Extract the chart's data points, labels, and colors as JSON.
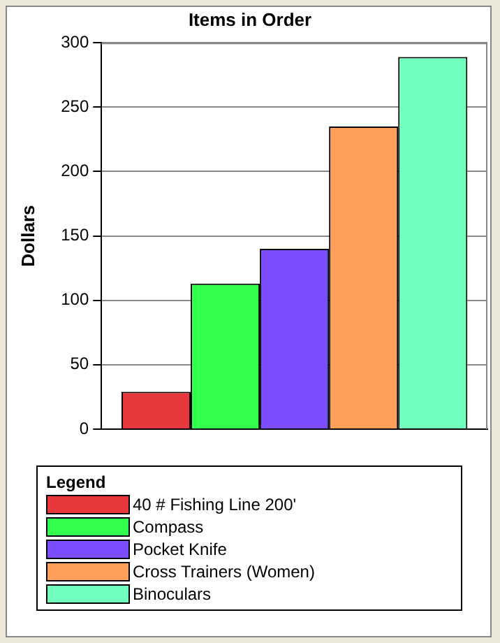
{
  "chart_data": {
    "type": "bar",
    "title": "Items in Order",
    "ylabel": "Dollars",
    "legend_title": "Legend",
    "categories": [
      null
    ],
    "series": [
      {
        "name": "40 # Fishing Line 200'",
        "color": "#e8383d",
        "values": [
          29
        ]
      },
      {
        "name": "Compass",
        "color": "#33ff4d",
        "values": [
          113
        ]
      },
      {
        "name": "Pocket Knife",
        "color": "#7b4dff",
        "values": [
          140
        ]
      },
      {
        "name": "Cross Trainers (Women)",
        "color": "#ffa05a",
        "values": [
          235
        ]
      },
      {
        "name": "Binoculars",
        "color": "#70ffbd",
        "values": [
          289
        ]
      }
    ],
    "ylim": [
      0,
      300
    ],
    "yticks": [
      0,
      50,
      100,
      150,
      200,
      250,
      300
    ],
    "grid": "y",
    "legend": "bottom"
  }
}
